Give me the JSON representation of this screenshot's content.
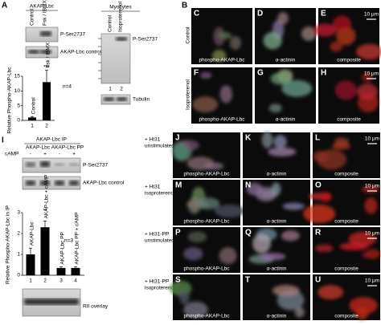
{
  "panel_a": {
    "label": "A",
    "blot_title": "AKAP-Lbc",
    "lanes": [
      "Control",
      "Fsk / IBMX"
    ],
    "blot_labels": [
      "P-Ser2737",
      "AKAP-Lbc control"
    ],
    "chart": {
      "type": "bar",
      "y_label": "Relative Phospho-AKAP-Lbc",
      "categories": [
        "1",
        "2"
      ],
      "bar_labels": [
        "Control",
        "Fsk / IBMX"
      ],
      "values": [
        1,
        13
      ],
      "errors": [
        0.3,
        4
      ],
      "ylim": [
        0,
        15
      ],
      "yticks": [
        0,
        5,
        10,
        15
      ],
      "significance": "***",
      "n": "n=4",
      "color": "#000000"
    }
  },
  "myocytes": {
    "title": "Myocytes",
    "lanes": [
      "Control",
      "Isoproterenol"
    ],
    "blot_labels": [
      "P-Ser2737",
      "Tubulin"
    ],
    "lane_numbers": [
      "1",
      "2"
    ]
  },
  "panel_b": {
    "label": "B",
    "rows": [
      "Control",
      "Isoproterenol"
    ],
    "panels": [
      {
        "letter": "C",
        "caption": "phospho-AKAP-Lbc"
      },
      {
        "letter": "D",
        "caption": "α-actinin"
      },
      {
        "letter": "E",
        "caption": "composite"
      },
      {
        "letter": "F",
        "caption": "phospho-AKAP-Lbc"
      },
      {
        "letter": "G",
        "caption": "α-actinin"
      },
      {
        "letter": "H",
        "caption": "composite"
      }
    ],
    "scale_bar": "10 μm"
  },
  "panel_i": {
    "label": "I",
    "ip_title": "AKAP-Lbc IP",
    "groups": [
      "AKAP-Lbc",
      "AKAP-Lbc PP"
    ],
    "treatment": "cAMP",
    "treatment_signs": [
      "-",
      "+",
      "-",
      "+"
    ],
    "blot_labels": [
      "P-Ser2737",
      "AKAP-Lbc control"
    ],
    "chart": {
      "type": "bar",
      "y_label": "Relative Phospho-AKAP-Lbc in IP",
      "categories": [
        "1",
        "2",
        "3",
        "4"
      ],
      "bar_labels": [
        "AKAP-Lbc",
        "AKAP-Lbc + cAMP",
        "AKAP-Lbc PP",
        "AKAP-Lbc PP + cAMP"
      ],
      "values": [
        1.0,
        2.3,
        0.35,
        0.35
      ],
      "errors": [
        0.3,
        0.3,
        0.05,
        0.05
      ],
      "ylim": [
        0,
        3
      ],
      "yticks": [
        0,
        1,
        2,
        3
      ],
      "significance": "**",
      "n": "n=3",
      "color": "#000000"
    },
    "overlay_label": "RII overlay"
  },
  "panel_j": {
    "rows": [
      {
        "condition": "+ Ht31",
        "state": "unstimulated"
      },
      {
        "condition": "+ Ht31",
        "state": "isoproterenol"
      },
      {
        "condition": "+ Ht31-PP",
        "state": "unstimulated"
      },
      {
        "condition": "+ Ht31-PP",
        "state": "isoproterenol"
      }
    ],
    "panels": [
      {
        "letter": "J",
        "caption": "phospho-AKAP-Lbc"
      },
      {
        "letter": "K",
        "caption": "α-actinin"
      },
      {
        "letter": "L",
        "caption": "composite"
      },
      {
        "letter": "M",
        "caption": "phospho-AKAP-Lbc"
      },
      {
        "letter": "N",
        "caption": "α-actinin"
      },
      {
        "letter": "O",
        "caption": "composite"
      },
      {
        "letter": "P",
        "caption": "phospho-AKAP-Lbc"
      },
      {
        "letter": "Q",
        "caption": "α-actinin"
      },
      {
        "letter": "R",
        "caption": "composite"
      },
      {
        "letter": "S",
        "caption": "phospho-AKAP-Lbc"
      },
      {
        "letter": "T",
        "caption": "α-actinin"
      },
      {
        "letter": "U",
        "caption": "composite"
      }
    ],
    "scale_bar": "10 μm"
  }
}
